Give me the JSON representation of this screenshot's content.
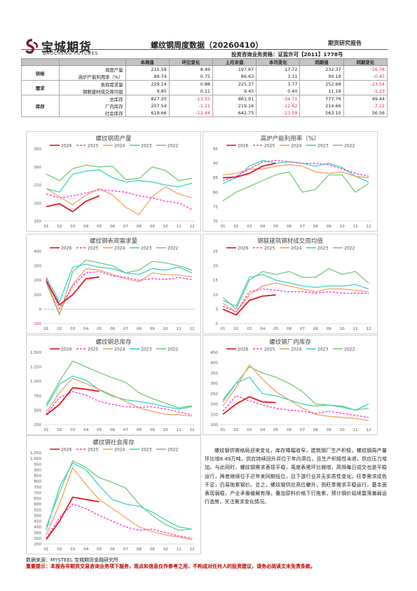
{
  "header": {
    "logo_cn": "宝城期货",
    "logo_en": "BAOCHENG FUTURES",
    "title": "螺纹钢周度数据（20260410）",
    "tag": "期货研究报告",
    "license": "投资咨询业务资格：证监许可【2011】1778号"
  },
  "table": {
    "columns": [
      "本周值",
      "环比变化",
      "上月末值",
      "本月变化",
      "同期值",
      "同期变化"
    ],
    "groups": [
      {
        "name": "供给",
        "rows": [
          {
            "item": "周度产量",
            "values": [
              "215.59",
              "8.49",
              "197.87",
              "17.72",
              "232.37",
              "-16.78"
            ]
          },
          {
            "item": "高炉产能利用率（%）",
            "values": [
              "89.74",
              "0.75",
              "86.63",
              "3.11",
              "90.19",
              "-0.45"
            ]
          }
        ]
      },
      {
        "name": "需求",
        "rows": [
          {
            "item": "表观需求量",
            "values": [
              "229.14",
              "0.88",
              "225.37",
              "3.77",
              "252.68",
              "-23.54"
            ]
          },
          {
            "item": "钢联建材成交周均值",
            "values": [
              "9.85",
              "0.11",
              "9.45",
              "0.40",
              "11.18",
              "-1.33"
            ]
          }
        ]
      },
      {
        "name": "库存",
        "rows": [
          {
            "item": "总库存",
            "values": [
              "827.20",
              "-13.55",
              "861.91",
              "-34.71",
              "777.76",
              "49.44"
            ]
          },
          {
            "item": "厂内库存",
            "values": [
              "207.54",
              "-1.11",
              "219.16",
              "-11.62",
              "214.66",
              "-7.12"
            ]
          },
          {
            "item": "社会库存",
            "values": [
              "619.66",
              "-12.44",
              "642.75",
              "-23.09",
              "563.10",
              "56.56"
            ]
          }
        ]
      }
    ]
  },
  "summary": "螺纹钢供需格局迎来变化，库存降幅收窄，建筑钢厂生产积极，螺纹钢周产量环比增8.49万吨，供应持续回升并位于年内高位，且生产积极性未退，供应压力增加。与此同时，螺纹钢需求表现平稳，周度表需环比微增，高频每日成交也是平稳运行，两者继续位于近年来同期低位，且下游行业并无实质性变化，旺季需求成色不足，仍易拖累钢价。总之，螺纹钢供应高位攀升，而旺季需求平稳运行，基本面表现弱稳，产业矛盾缓解有限，叠加原料价格下行拖累，预计钢价延续震荡偏弱运行态势，关注需求变化情况。",
  "source": "数据来源：MYSTEEL 宝城期货金融研究所",
  "disclaimer": "重要提示：本报告非期货交易咨询业务项下服务，观点和信息仅作参考之用，不构成对任何人的投资建议，请务必阅读文末免责条款。",
  "chart_data": [
    {
      "type": "line",
      "title": "螺纹钢周产量",
      "x_ticks": [
        "01",
        "02",
        "03",
        "04",
        "05",
        "06",
        "07",
        "08",
        "09",
        "10",
        "11",
        "12"
      ],
      "ylim": [
        150,
        350
      ],
      "yticks": [
        "150",
        "200",
        "250",
        "300",
        "350"
      ],
      "series": [
        {
          "name": "2026",
          "color": "#e8141e",
          "values": [
            190,
            198,
            176,
            205,
            220
          ]
        },
        {
          "name": "2025",
          "color": "#ff33cc",
          "values": [
            225,
            214,
            220,
            228,
            236,
            234,
            230,
            220,
            214,
            205,
            200,
            182
          ]
        },
        {
          "name": "2024",
          "color": "#f4a261",
          "values": [
            240,
            218,
            195,
            222,
            240,
            222,
            188,
            168,
            218,
            245,
            225,
            215
          ]
        },
        {
          "name": "2023",
          "color": "#39d4c6",
          "values": [
            240,
            230,
            280,
            288,
            292,
            270,
            258,
            262,
            258,
            250,
            245,
            255
          ]
        },
        {
          "name": "2022",
          "color": "#79c879",
          "values": [
            280,
            262,
            295,
            305,
            300,
            302,
            265,
            268,
            300,
            290,
            262,
            268
          ]
        }
      ]
    },
    {
      "type": "line",
      "title": "高炉产能利用率（%）",
      "x_ticks": [
        "01",
        "02",
        "03",
        "04",
        "05",
        "06",
        "07",
        "08",
        "09",
        "10",
        "11",
        "12"
      ],
      "ylim": [
        70,
        95
      ],
      "yticks": [
        "70",
        "75",
        "80",
        "85",
        "90",
        "95"
      ],
      "series": [
        {
          "name": "2026",
          "color": "#e8141e",
          "values": [
            85,
            85.2,
            86.5,
            89,
            90
          ]
        },
        {
          "name": "2025",
          "color": "#ff33cc",
          "values": [
            84,
            85.5,
            88,
            90.5,
            91,
            90.5,
            90,
            90,
            89.5,
            88,
            86.5,
            85.5
          ]
        },
        {
          "name": "2024",
          "color": "#f4a261",
          "values": [
            86,
            86.5,
            88,
            88,
            89,
            89.5,
            89,
            87,
            86.5,
            87,
            85.5,
            85
          ]
        },
        {
          "name": "2023",
          "color": "#39d4c6",
          "values": [
            83,
            85,
            89,
            91,
            90,
            90.5,
            90,
            89,
            90,
            88.5,
            85.5,
            83.5
          ]
        },
        {
          "name": "2022",
          "color": "#79c879",
          "values": [
            77,
            80,
            82,
            84,
            86,
            87,
            80,
            81,
            86,
            86,
            80,
            83
          ]
        }
      ]
    },
    {
      "type": "line",
      "title": "螺纹钢表观需求量",
      "x_ticks": [
        "01",
        "02",
        "03",
        "04",
        "05",
        "06",
        "07",
        "08",
        "09",
        "10",
        "11",
        "12"
      ],
      "ylim": [
        -100,
        400
      ],
      "yticks": [
        "-100",
        "0",
        "100",
        "200",
        "300",
        "400"
      ],
      "series": [
        {
          "name": "2026",
          "color": "#e8141e",
          "values": [
            195,
            30,
            100,
            210,
            222
          ]
        },
        {
          "name": "2025",
          "color": "#ff33cc",
          "values": [
            210,
            5,
            160,
            250,
            260,
            230,
            220,
            200,
            210,
            205,
            220,
            205
          ]
        },
        {
          "name": "2024",
          "color": "#f4a261",
          "values": [
            200,
            -30,
            170,
            280,
            270,
            240,
            210,
            190,
            250,
            240,
            235,
            225
          ]
        },
        {
          "name": "2023",
          "color": "#39d4c6",
          "values": [
            220,
            50,
            290,
            310,
            290,
            280,
            250,
            240,
            280,
            270,
            290,
            250
          ]
        },
        {
          "name": "2022",
          "color": "#79c879",
          "values": [
            180,
            -40,
            260,
            340,
            320,
            300,
            250,
            270,
            330,
            320,
            300,
            270
          ]
        }
      ]
    },
    {
      "type": "line",
      "title": "钢联建筑钢材成交周均值",
      "x_ticks": [
        "01",
        "02",
        "03",
        "04",
        "05",
        "06",
        "07",
        "08",
        "09",
        "10",
        "11",
        "12"
      ],
      "ylim": [
        0,
        25
      ],
      "yticks": [
        "0",
        "5",
        "10",
        "15",
        "20",
        "25"
      ],
      "series": [
        {
          "name": "2026",
          "color": "#e8141e",
          "values": [
            5,
            3,
            8,
            9.5,
            9.9
          ]
        },
        {
          "name": "2025",
          "color": "#ff33cc",
          "values": [
            6,
            4,
            11,
            12,
            11.5,
            11,
            11,
            10.5,
            11,
            10.5,
            10.5,
            10.5
          ]
        },
        {
          "name": "2024",
          "color": "#f4a261",
          "values": [
            7,
            4,
            10,
            13,
            14,
            13,
            12,
            11,
            12,
            12,
            11.5,
            11
          ]
        },
        {
          "name": "2023",
          "color": "#39d4c6",
          "values": [
            8,
            6,
            16,
            17,
            15,
            14,
            13,
            12.5,
            13,
            13,
            13.5,
            12
          ]
        },
        {
          "name": "2022",
          "color": "#79c879",
          "values": [
            9,
            5,
            15,
            18,
            17,
            18,
            16,
            16,
            19,
            17,
            18,
            14
          ]
        }
      ]
    },
    {
      "type": "line",
      "title": "螺纹钢总库存",
      "x_ticks": [
        "01",
        "02",
        "03",
        "04",
        "05",
        "06",
        "07",
        "08",
        "09",
        "10",
        "11",
        "12"
      ],
      "ylim": [
        250,
        1500
      ],
      "yticks": [
        "250",
        "500",
        "750",
        "1,000",
        "1,250",
        "1,500"
      ],
      "series": [
        {
          "name": "2026",
          "color": "#e8141e",
          "values": [
            420,
            600,
            890,
            860,
            827
          ]
        },
        {
          "name": "2025",
          "color": "#ff33cc",
          "values": [
            430,
            720,
            820,
            760,
            650,
            600,
            560,
            550,
            560,
            520,
            470,
            420
          ]
        },
        {
          "name": "2024",
          "color": "#f4a261",
          "values": [
            470,
            800,
            1050,
            960,
            860,
            760,
            650,
            540,
            480,
            430,
            420,
            400
          ]
        },
        {
          "name": "2023",
          "color": "#39d4c6",
          "values": [
            560,
            950,
            1090,
            1020,
            850,
            740,
            680,
            650,
            610,
            560,
            520,
            560
          ]
        },
        {
          "name": "2022",
          "color": "#79c879",
          "values": [
            600,
            1000,
            1350,
            1250,
            1150,
            1060,
            980,
            800,
            700,
            620,
            540,
            580
          ]
        }
      ]
    },
    {
      "type": "line",
      "title": "螺纹钢厂内库存",
      "x_ticks": [
        "01",
        "02",
        "03",
        "04",
        "05",
        "06",
        "07",
        "08",
        "09",
        "10",
        "11",
        "12"
      ],
      "ylim": [
        100,
        450
      ],
      "yticks": [
        "100",
        "150",
        "200",
        "250",
        "300",
        "350",
        "400",
        "450"
      ],
      "series": [
        {
          "name": "2026",
          "color": "#e8141e",
          "values": [
            150,
            200,
            235,
            210,
            207
          ]
        },
        {
          "name": "2025",
          "color": "#ff33cc",
          "values": [
            165,
            240,
            215,
            195,
            180,
            170,
            165,
            155,
            165,
            155,
            145,
            135
          ]
        },
        {
          "name": "2024",
          "color": "#f4a261",
          "values": [
            190,
            280,
            390,
            320,
            260,
            220,
            180,
            150,
            140,
            135,
            130,
            120
          ]
        },
        {
          "name": "2023",
          "color": "#39d4c6",
          "values": [
            210,
            300,
            330,
            250,
            240,
            220,
            200,
            190,
            195,
            185,
            170,
            200
          ]
        },
        {
          "name": "2022",
          "color": "#79c879",
          "values": [
            220,
            300,
            380,
            350,
            330,
            300,
            260,
            200,
            195,
            190,
            170,
            180
          ]
        }
      ]
    },
    {
      "type": "line",
      "title": "螺纹钢社会库存",
      "x_ticks": [
        "01",
        "02",
        "03",
        "04",
        "05",
        "06",
        "07",
        "08",
        "09",
        "10",
        "11",
        "12"
      ],
      "ylim": [
        250,
        1050
      ],
      "yticks": [
        "250",
        "300",
        "350",
        "400",
        "450",
        "500",
        "550",
        "600",
        "650",
        "700",
        "750",
        "800",
        "850",
        "900",
        "950",
        "1,000",
        "1,050"
      ],
      "series": [
        {
          "name": "2026",
          "color": "#e8141e",
          "values": [
            290,
            450,
            660,
            640,
            620
          ]
        },
        {
          "name": "2025",
          "color": "#ff33cc",
          "values": [
            300,
            480,
            600,
            560,
            500,
            450,
            400,
            370,
            380,
            350,
            320,
            300
          ]
        },
        {
          "name": "2024",
          "color": "#f4a261",
          "values": [
            330,
            600,
            920,
            770,
            640,
            560,
            480,
            400,
            360,
            330,
            310,
            290
          ]
        },
        {
          "name": "2023",
          "color": "#39d4c6",
          "values": [
            370,
            750,
            960,
            900,
            760,
            640,
            600,
            580,
            530,
            460,
            400,
            380
          ]
        },
        {
          "name": "2022",
          "color": "#79c879",
          "values": [
            400,
            700,
            980,
            920,
            830,
            790,
            740,
            600,
            500,
            420,
            370,
            380
          ]
        }
      ]
    }
  ]
}
